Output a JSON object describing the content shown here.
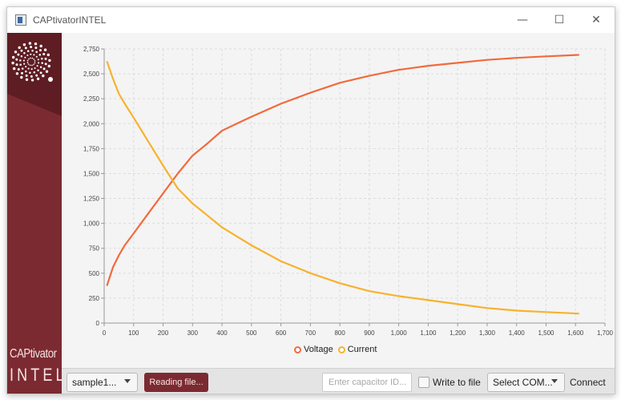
{
  "window": {
    "title": "CAPtivatorINTEL",
    "minimize_glyph": "—",
    "maximize_glyph": "☐",
    "close_glyph": "✕"
  },
  "sidebar": {
    "brand_top": "CAPtivator",
    "brand_bottom": "INTEL",
    "logo_icon": "radial-dots-logo-icon"
  },
  "legend": {
    "voltage": "Voltage",
    "current": "Current"
  },
  "colors": {
    "voltage": "#f26a3d",
    "current": "#f7b22d",
    "brand": "#7c2a31",
    "grid": "#dcdcdc"
  },
  "toolbar": {
    "file_select_value": "sample1...",
    "reading_button_label": "Reading file...",
    "capacitor_id_placeholder": "Enter capacitor ID...",
    "capacitor_id_value": "",
    "write_to_file_label": "Write to file",
    "write_to_file_checked": false,
    "com_select_value": "Select COM...",
    "connect_label": "Connect"
  },
  "chart_data": {
    "type": "line",
    "title": "",
    "xlabel": "",
    "ylabel": "",
    "xlim": [
      0,
      1700
    ],
    "ylim": [
      0,
      2750
    ],
    "xticks": [
      "0",
      "100",
      "200",
      "300",
      "400",
      "500",
      "600",
      "700",
      "800",
      "900",
      "1,000",
      "1,100",
      "1,200",
      "1,300",
      "1,400",
      "1,500",
      "1,600",
      "1,700"
    ],
    "yticks": [
      "0",
      "250",
      "500",
      "750",
      "1,000",
      "1,250",
      "1,500",
      "1,750",
      "2,000",
      "2,250",
      "2,500",
      "2,750"
    ],
    "grid": true,
    "legend_position": "bottom-center",
    "series": [
      {
        "name": "Voltage",
        "x": [
          10,
          30,
          50,
          70,
          100,
          150,
          200,
          250,
          300,
          350,
          400,
          450,
          500,
          600,
          700,
          800,
          900,
          1000,
          1100,
          1200,
          1300,
          1400,
          1500,
          1610
        ],
        "y": [
          380,
          560,
          680,
          780,
          900,
          1100,
          1300,
          1500,
          1680,
          1800,
          1930,
          2000,
          2070,
          2200,
          2310,
          2410,
          2480,
          2540,
          2580,
          2610,
          2640,
          2660,
          2675,
          2690
        ]
      },
      {
        "name": "Current",
        "x": [
          10,
          30,
          50,
          70,
          100,
          150,
          200,
          250,
          300,
          350,
          400,
          450,
          500,
          600,
          700,
          800,
          900,
          1000,
          1100,
          1200,
          1300,
          1400,
          1500,
          1610
        ],
        "y": [
          2620,
          2450,
          2300,
          2200,
          2060,
          1820,
          1580,
          1350,
          1200,
          1080,
          960,
          870,
          780,
          620,
          500,
          400,
          320,
          270,
          230,
          190,
          150,
          125,
          110,
          95
        ]
      }
    ]
  }
}
